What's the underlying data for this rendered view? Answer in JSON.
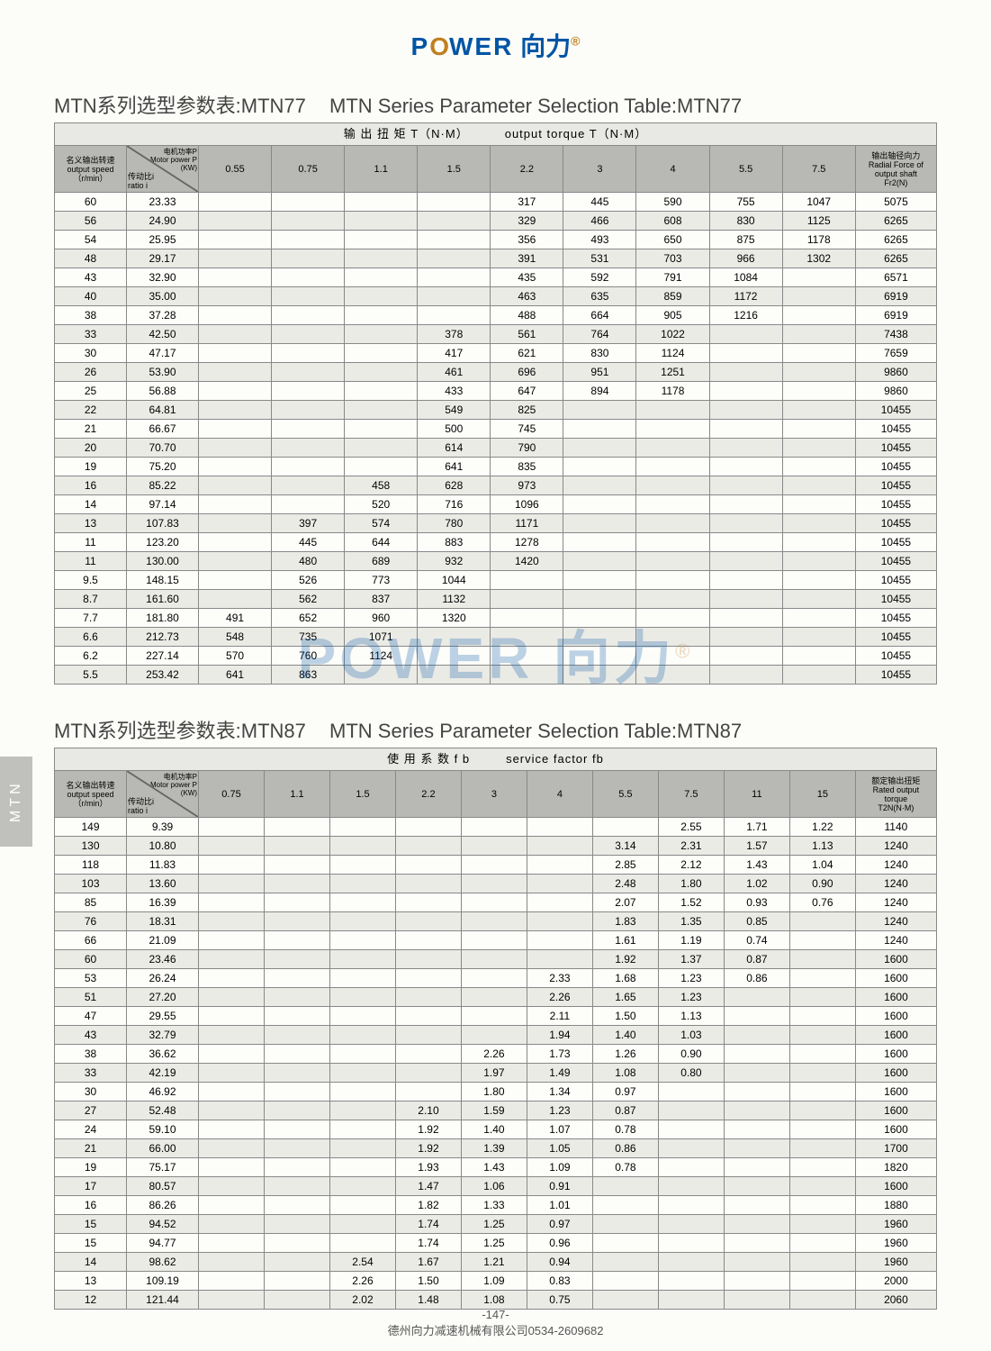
{
  "logo": {
    "power": "P",
    "gear": "O",
    "wer": "WER",
    "cn": "向力",
    "reg": "®"
  },
  "pageNum": "-147-",
  "footer": "德州向力减速机械有限公司0534-2609682",
  "watermark": "POWER 向力",
  "sideTab": "MTN",
  "table1": {
    "titleCn": "MTN系列选型参数表:MTN77",
    "titleEn": "MTN Series Parameter Selection Table:MTN77",
    "bandCn": "输 出 扭 矩 T（N·M）",
    "bandEn": "output torque T（N·M）",
    "col1a": "名义输出转速",
    "col1b": "output speed",
    "col1c": "（r/min）",
    "col2a": "电机功率P",
    "col2b": "Motor power P",
    "col2c": "(KW)",
    "col2d": "传动比i",
    "col2e": "ratio i",
    "powerCols": [
      "0.55",
      "0.75",
      "1.1",
      "1.5",
      "2.2",
      "3",
      "4",
      "5.5",
      "7.5"
    ],
    "lastA": "输出轴径向力",
    "lastB": "Radial Force of",
    "lastC": "output shaft",
    "lastD": "Fr2(N)",
    "rows": [
      [
        "60",
        "23.33",
        "",
        "",
        "",
        "",
        "317",
        "445",
        "590",
        "755",
        "1047",
        "5075"
      ],
      [
        "56",
        "24.90",
        "",
        "",
        "",
        "",
        "329",
        "466",
        "608",
        "830",
        "1125",
        "6265"
      ],
      [
        "54",
        "25.95",
        "",
        "",
        "",
        "",
        "356",
        "493",
        "650",
        "875",
        "1178",
        "6265"
      ],
      [
        "48",
        "29.17",
        "",
        "",
        "",
        "",
        "391",
        "531",
        "703",
        "966",
        "1302",
        "6265"
      ],
      [
        "43",
        "32.90",
        "",
        "",
        "",
        "",
        "435",
        "592",
        "791",
        "1084",
        "",
        "6571"
      ],
      [
        "40",
        "35.00",
        "",
        "",
        "",
        "",
        "463",
        "635",
        "859",
        "1172",
        "",
        "6919"
      ],
      [
        "38",
        "37.28",
        "",
        "",
        "",
        "",
        "488",
        "664",
        "905",
        "1216",
        "",
        "6919"
      ],
      [
        "33",
        "42.50",
        "",
        "",
        "",
        "378",
        "561",
        "764",
        "1022",
        "",
        "",
        "7438"
      ],
      [
        "30",
        "47.17",
        "",
        "",
        "",
        "417",
        "621",
        "830",
        "1124",
        "",
        "",
        "7659"
      ],
      [
        "26",
        "53.90",
        "",
        "",
        "",
        "461",
        "696",
        "951",
        "1251",
        "",
        "",
        "9860"
      ],
      [
        "25",
        "56.88",
        "",
        "",
        "",
        "433",
        "647",
        "894",
        "1178",
        "",
        "",
        "9860"
      ],
      [
        "22",
        "64.81",
        "",
        "",
        "",
        "549",
        "825",
        "",
        "",
        "",
        "",
        "10455"
      ],
      [
        "21",
        "66.67",
        "",
        "",
        "",
        "500",
        "745",
        "",
        "",
        "",
        "",
        "10455"
      ],
      [
        "20",
        "70.70",
        "",
        "",
        "",
        "614",
        "790",
        "",
        "",
        "",
        "",
        "10455"
      ],
      [
        "19",
        "75.20",
        "",
        "",
        "",
        "641",
        "835",
        "",
        "",
        "",
        "",
        "10455"
      ],
      [
        "16",
        "85.22",
        "",
        "",
        "458",
        "628",
        "973",
        "",
        "",
        "",
        "",
        "10455"
      ],
      [
        "14",
        "97.14",
        "",
        "",
        "520",
        "716",
        "1096",
        "",
        "",
        "",
        "",
        "10455"
      ],
      [
        "13",
        "107.83",
        "",
        "397",
        "574",
        "780",
        "1171",
        "",
        "",
        "",
        "",
        "10455"
      ],
      [
        "11",
        "123.20",
        "",
        "445",
        "644",
        "883",
        "1278",
        "",
        "",
        "",
        "",
        "10455"
      ],
      [
        "11",
        "130.00",
        "",
        "480",
        "689",
        "932",
        "1420",
        "",
        "",
        "",
        "",
        "10455"
      ],
      [
        "9.5",
        "148.15",
        "",
        "526",
        "773",
        "1044",
        "",
        "",
        "",
        "",
        "",
        "10455"
      ],
      [
        "8.7",
        "161.60",
        "",
        "562",
        "837",
        "1132",
        "",
        "",
        "",
        "",
        "",
        "10455"
      ],
      [
        "7.7",
        "181.80",
        "491",
        "652",
        "960",
        "1320",
        "",
        "",
        "",
        "",
        "",
        "10455"
      ],
      [
        "6.6",
        "212.73",
        "548",
        "735",
        "1071",
        "",
        "",
        "",
        "",
        "",
        "",
        "10455"
      ],
      [
        "6.2",
        "227.14",
        "570",
        "760",
        "1124",
        "",
        "",
        "",
        "",
        "",
        "",
        "10455"
      ],
      [
        "5.5",
        "253.42",
        "641",
        "863",
        "",
        "",
        "",
        "",
        "",
        "",
        "",
        "10455"
      ]
    ]
  },
  "table2": {
    "titleCn": "MTN系列选型参数表:MTN87",
    "titleEn": "MTN Series Parameter Selection Table:MTN87",
    "bandCn": "使 用 系 数 f b",
    "bandEn": "service  factor  fb",
    "col1a": "名义输出转速",
    "col1b": "output speed",
    "col1c": "（r/min）",
    "col2a": "电机功率P",
    "col2b": "Motor power P",
    "col2c": "(KW)",
    "col2d": "传动比i",
    "col2e": "ratio i",
    "powerCols": [
      "0.75",
      "1.1",
      "1.5",
      "2.2",
      "3",
      "4",
      "5.5",
      "7.5",
      "11",
      "15"
    ],
    "lastA": "额定输出扭矩",
    "lastB": "Rated output",
    "lastC": "torque",
    "lastD": "T2N(N·M)",
    "rows": [
      [
        "149",
        "9.39",
        "",
        "",
        "",
        "",
        "",
        "",
        "",
        "2.55",
        "1.71",
        "1.22",
        "1140"
      ],
      [
        "130",
        "10.80",
        "",
        "",
        "",
        "",
        "",
        "",
        "3.14",
        "2.31",
        "1.57",
        "1.13",
        "1240"
      ],
      [
        "118",
        "11.83",
        "",
        "",
        "",
        "",
        "",
        "",
        "2.85",
        "2.12",
        "1.43",
        "1.04",
        "1240"
      ],
      [
        "103",
        "13.60",
        "",
        "",
        "",
        "",
        "",
        "",
        "2.48",
        "1.80",
        "1.02",
        "0.90",
        "1240"
      ],
      [
        "85",
        "16.39",
        "",
        "",
        "",
        "",
        "",
        "",
        "2.07",
        "1.52",
        "0.93",
        "0.76",
        "1240"
      ],
      [
        "76",
        "18.31",
        "",
        "",
        "",
        "",
        "",
        "",
        "1.83",
        "1.35",
        "0.85",
        "",
        "1240"
      ],
      [
        "66",
        "21.09",
        "",
        "",
        "",
        "",
        "",
        "",
        "1.61",
        "1.19",
        "0.74",
        "",
        "1240"
      ],
      [
        "60",
        "23.46",
        "",
        "",
        "",
        "",
        "",
        "",
        "1.92",
        "1.37",
        "0.87",
        "",
        "1600"
      ],
      [
        "53",
        "26.24",
        "",
        "",
        "",
        "",
        "",
        "2.33",
        "1.68",
        "1.23",
        "0.86",
        "",
        "1600"
      ],
      [
        "51",
        "27.20",
        "",
        "",
        "",
        "",
        "",
        "2.26",
        "1.65",
        "1.23",
        "",
        "",
        "1600"
      ],
      [
        "47",
        "29.55",
        "",
        "",
        "",
        "",
        "",
        "2.11",
        "1.50",
        "1.13",
        "",
        "",
        "1600"
      ],
      [
        "43",
        "32.79",
        "",
        "",
        "",
        "",
        "",
        "1.94",
        "1.40",
        "1.03",
        "",
        "",
        "1600"
      ],
      [
        "38",
        "36.62",
        "",
        "",
        "",
        "",
        "2.26",
        "1.73",
        "1.26",
        "0.90",
        "",
        "",
        "1600"
      ],
      [
        "33",
        "42.19",
        "",
        "",
        "",
        "",
        "1.97",
        "1.49",
        "1.08",
        "0.80",
        "",
        "",
        "1600"
      ],
      [
        "30",
        "46.92",
        "",
        "",
        "",
        "",
        "1.80",
        "1.34",
        "0.97",
        "",
        "",
        "",
        "1600"
      ],
      [
        "27",
        "52.48",
        "",
        "",
        "",
        "2.10",
        "1.59",
        "1.23",
        "0.87",
        "",
        "",
        "",
        "1600"
      ],
      [
        "24",
        "59.10",
        "",
        "",
        "",
        "1.92",
        "1.40",
        "1.07",
        "0.78",
        "",
        "",
        "",
        "1600"
      ],
      [
        "21",
        "66.00",
        "",
        "",
        "",
        "1.92",
        "1.39",
        "1.05",
        "0.86",
        "",
        "",
        "",
        "1700"
      ],
      [
        "19",
        "75.17",
        "",
        "",
        "",
        "1.93",
        "1.43",
        "1.09",
        "0.78",
        "",
        "",
        "",
        "1820"
      ],
      [
        "17",
        "80.57",
        "",
        "",
        "",
        "1.47",
        "1.06",
        "0.91",
        "",
        "",
        "",
        "",
        "1600"
      ],
      [
        "16",
        "86.26",
        "",
        "",
        "",
        "1.82",
        "1.33",
        "1.01",
        "",
        "",
        "",
        "",
        "1880"
      ],
      [
        "15",
        "94.52",
        "",
        "",
        "",
        "1.74",
        "1.25",
        "0.97",
        "",
        "",
        "",
        "",
        "1960"
      ],
      [
        "15",
        "94.77",
        "",
        "",
        "",
        "1.74",
        "1.25",
        "0.96",
        "",
        "",
        "",
        "",
        "1960"
      ],
      [
        "14",
        "98.62",
        "",
        "",
        "2.54",
        "1.67",
        "1.21",
        "0.94",
        "",
        "",
        "",
        "",
        "1960"
      ],
      [
        "13",
        "109.19",
        "",
        "",
        "2.26",
        "1.50",
        "1.09",
        "0.83",
        "",
        "",
        "",
        "",
        "2000"
      ],
      [
        "12",
        "121.44",
        "",
        "",
        "2.02",
        "1.48",
        "1.08",
        "0.75",
        "",
        "",
        "",
        "",
        "2060"
      ]
    ]
  }
}
